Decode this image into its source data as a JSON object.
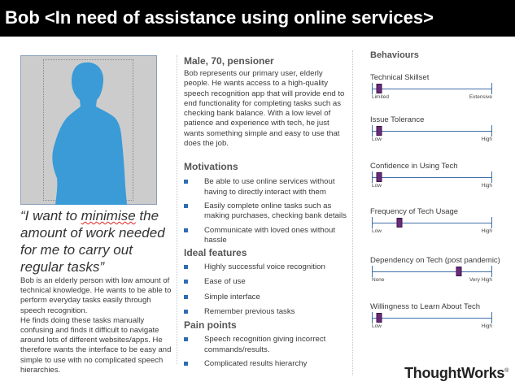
{
  "header": {
    "title": "Bob <In need of assistance using online services>"
  },
  "persona": {
    "quote_pre": "“I want to ",
    "quote_word": "minimise",
    "quote_post": " the amount of work needed for me to carry out regular tasks”",
    "bio_p1": "Bob is an elderly person with low amount of technical knowledge. He wants to be able to perform everyday tasks easily through speech recognition.",
    "bio_p2": "He finds doing these tasks manually confusing and finds it difficult to navigate around lots of different websites/apps. He therefore wants the interface to be easy and simple to use with no complicated speech hierarchies."
  },
  "profile": {
    "heading": "Male, 70, pensioner",
    "description": "Bob represents our primary user, elderly people. He wants access to a high-quality speech recognition app that will provide end to end functionality for completing tasks such as checking bank balance. With a low level of patience and experience with tech, he just wants something simple and easy to use that does the job."
  },
  "motivations": {
    "heading": "Motivations",
    "items": [
      "Be able to use online services without having to directly interact with them",
      "Easily complete online tasks such as making purchases, checking bank details",
      "Communicate with loved ones without hassle"
    ]
  },
  "ideal": {
    "heading": "Ideal features",
    "items": [
      "Highly successful voice recognition",
      "Ease of use",
      "Simple interface",
      "Remember previous tasks"
    ]
  },
  "pain": {
    "heading": "Pain points",
    "items": [
      "Speech recognition giving incorrect commands/results.",
      "Complicated results hierarchy"
    ]
  },
  "behaviours": {
    "title": "Behaviours",
    "scales": [
      {
        "label": "Technical Skillset",
        "low": "Limited",
        "high": "Extensive",
        "value": 0.06
      },
      {
        "label": "Issue Tolerance",
        "low": "Low",
        "high": "High",
        "value": 0.06
      },
      {
        "label": "Confidence in Using Tech",
        "low": "Low",
        "high": "High",
        "value": 0.06
      },
      {
        "label": "Frequency of Tech Usage",
        "low": "Low",
        "high": "High",
        "value": 0.23
      },
      {
        "label": "Dependency on Tech (post pandemic)",
        "low": "None",
        "high": "Very High",
        "value": 0.73
      },
      {
        "label": "Willingness to Learn About Tech",
        "low": "Low",
        "high": "High",
        "value": 0.06
      }
    ]
  },
  "logo": {
    "text": "ThoughtWorks",
    "mark": "®"
  },
  "colors": {
    "header_bg": "#000000",
    "silhouette": "#3a9bd6",
    "knob": "#6b2a7a",
    "bullet": "#2f6db3"
  }
}
